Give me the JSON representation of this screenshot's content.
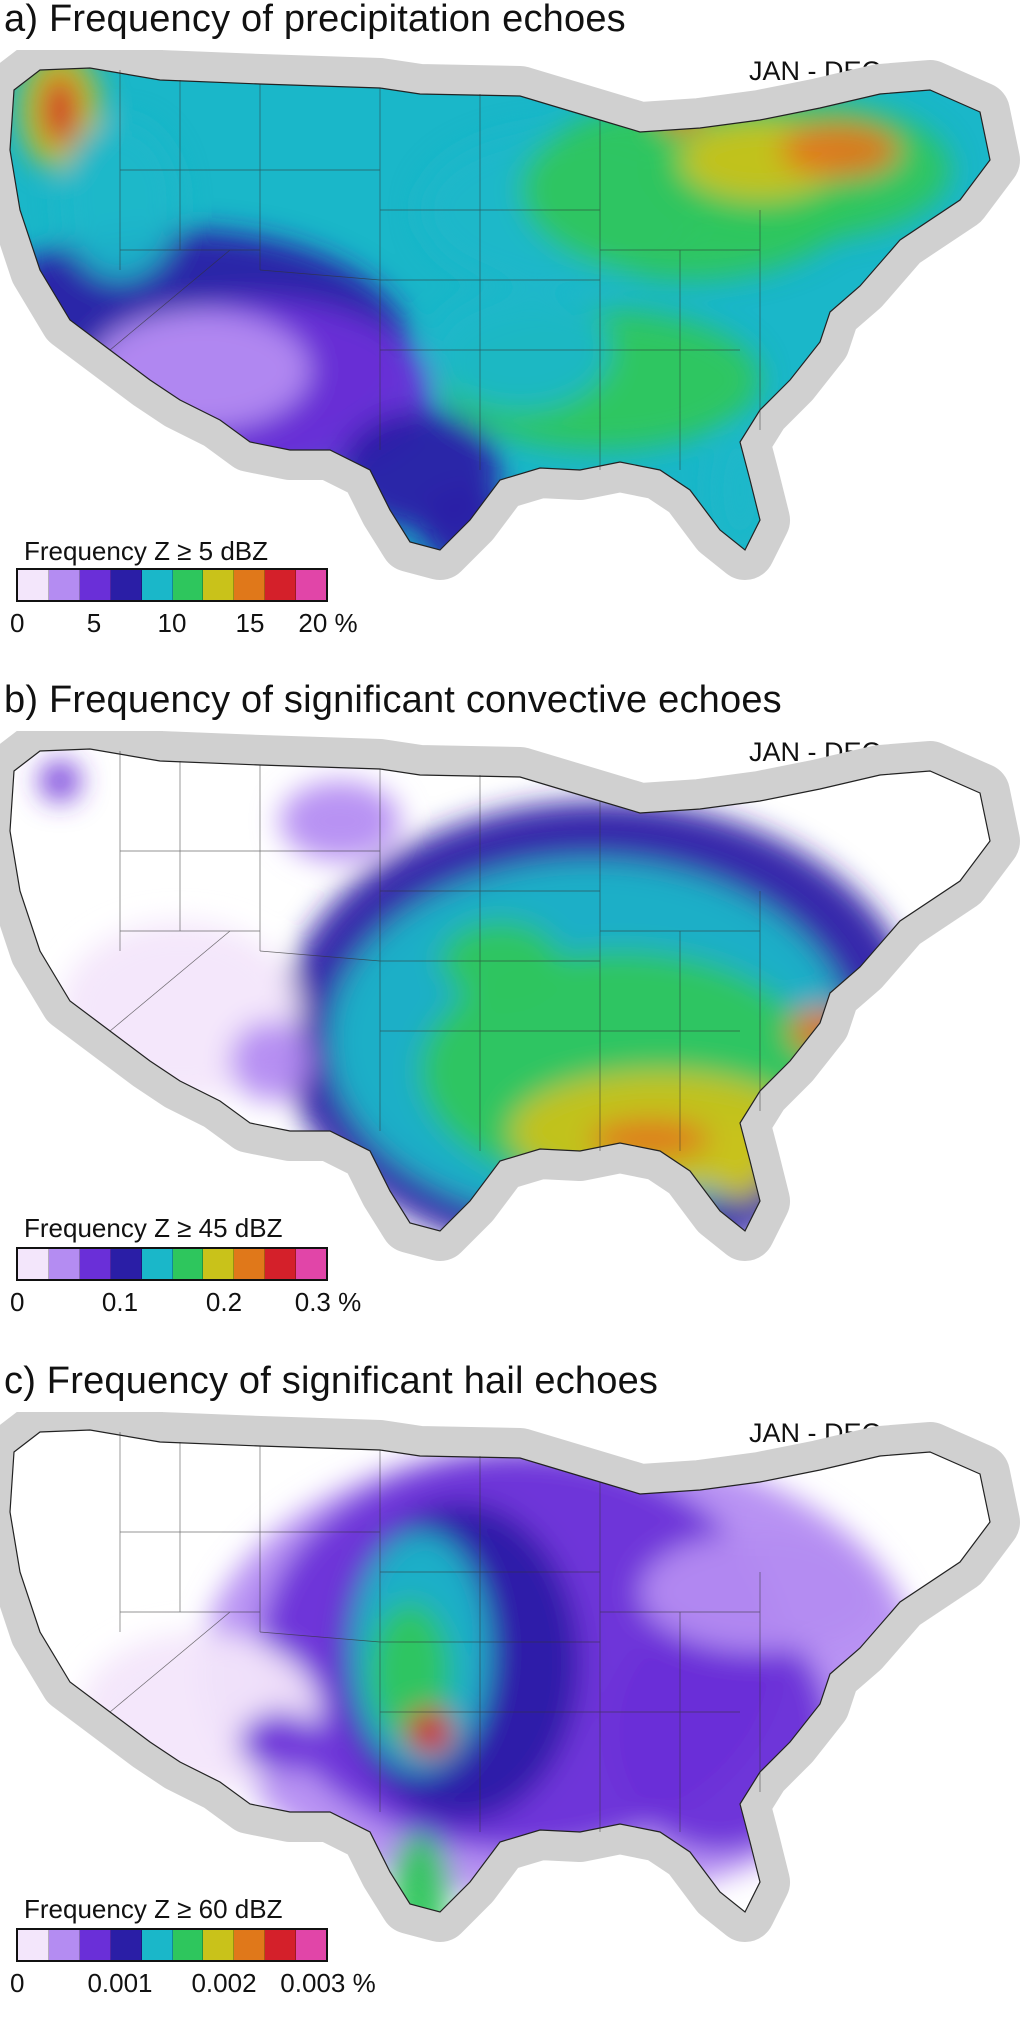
{
  "colors": [
    "#f3e6fb",
    "#b48cf2",
    "#6a2fd8",
    "#2a1ea6",
    "#1ab7c9",
    "#2ec65d",
    "#c9c21a",
    "#e0781a",
    "#d4202a",
    "#e145a8"
  ],
  "panels": [
    {
      "id": "a",
      "title": "a) Frequency of precipitation echoes",
      "season": "JAN - DEC",
      "legend_title": "Frequency Z ≥ 5 dBZ",
      "ticks": [
        "0",
        "5",
        "10",
        "15",
        "20 %"
      ],
      "tick_positions": [
        0,
        0.25,
        0.5,
        0.75,
        1.0
      ],
      "range": [
        0,
        20
      ],
      "pattern": "precip"
    },
    {
      "id": "b",
      "title": "b) Frequency of significant convective echoes",
      "season": "JAN - DEC",
      "legend_title": "Frequency Z ≥ 45 dBZ",
      "ticks": [
        "0",
        "0.1",
        "0.2",
        "0.3 %"
      ],
      "tick_positions": [
        0,
        0.3333,
        0.6667,
        1.0
      ],
      "range": [
        0,
        0.3
      ],
      "pattern": "convective"
    },
    {
      "id": "c",
      "title": "c) Frequency of significant hail echoes",
      "season": "JAN - DEC",
      "legend_title": "Frequency Z ≥ 60 dBZ",
      "ticks": [
        "0",
        "0.001",
        "0.002",
        "0.003 %"
      ],
      "tick_positions": [
        0,
        0.3333,
        0.6667,
        1.0
      ],
      "range": [
        0,
        0.003
      ],
      "pattern": "hail"
    }
  ]
}
